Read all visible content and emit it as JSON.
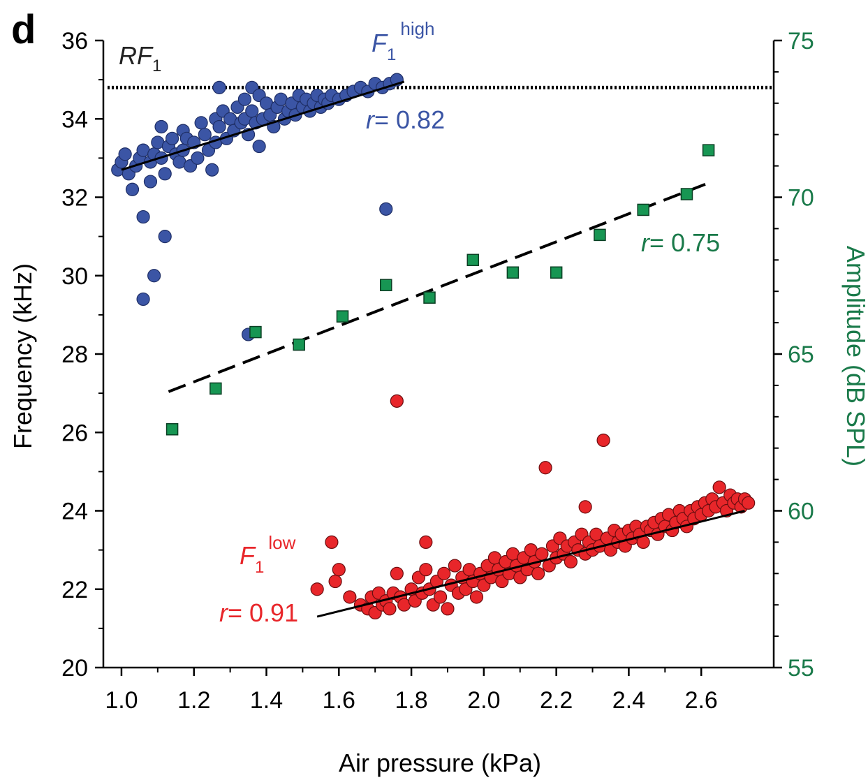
{
  "chart_data": {
    "type": "scatter",
    "panel_label": "d",
    "xlabel": "Air pressure (kPa)",
    "ylabel_left": "Frequency (kHz)",
    "ylabel_right": "Amplitude (dB SPL)",
    "xlim": [
      0.95,
      2.8
    ],
    "ylim_left": [
      20,
      36
    ],
    "ylim_right": [
      55,
      75
    ],
    "x_ticks": [
      "1.0",
      "1.2",
      "1.4",
      "1.6",
      "1.8",
      "2.0",
      "2.2",
      "2.4",
      "2.6"
    ],
    "y_ticks_left": [
      "20",
      "22",
      "24",
      "26",
      "28",
      "30",
      "32",
      "34",
      "36"
    ],
    "y_ticks_right": [
      "55",
      "60",
      "65",
      "70",
      "75"
    ],
    "grid": false,
    "reference_line": {
      "label": "RF",
      "label_sub": "1",
      "y": 34.8,
      "style": "dotted"
    },
    "colors": {
      "high": "#3b55a5",
      "low": "#e8262a",
      "amplitude": "#179653",
      "right_axis": "#1a7a4a",
      "fit": "#000000"
    },
    "series": [
      {
        "name": "F",
        "name_sub": "1",
        "name_sup": "high",
        "axis": "left",
        "r_label": "r",
        "r_value": "= 0.82",
        "fit": {
          "x": [
            1.0,
            1.78
          ],
          "y": [
            32.7,
            34.95
          ]
        },
        "points": [
          [
            0.99,
            32.7
          ],
          [
            1.0,
            32.9
          ],
          [
            1.01,
            33.1
          ],
          [
            1.02,
            32.6
          ],
          [
            1.03,
            32.2
          ],
          [
            1.04,
            32.8
          ],
          [
            1.05,
            33.0
          ],
          [
            1.06,
            33.2
          ],
          [
            1.06,
            31.5
          ],
          [
            1.06,
            29.4
          ],
          [
            1.08,
            32.4
          ],
          [
            1.08,
            32.9
          ],
          [
            1.09,
            33.1
          ],
          [
            1.09,
            30.0
          ],
          [
            1.1,
            33.4
          ],
          [
            1.11,
            33.8
          ],
          [
            1.11,
            33.0
          ],
          [
            1.12,
            32.6
          ],
          [
            1.12,
            31.0
          ],
          [
            1.13,
            33.3
          ],
          [
            1.14,
            33.5
          ],
          [
            1.15,
            33.1
          ],
          [
            1.16,
            32.9
          ],
          [
            1.17,
            33.7
          ],
          [
            1.17,
            33.2
          ],
          [
            1.18,
            33.5
          ],
          [
            1.19,
            32.8
          ],
          [
            1.2,
            33.4
          ],
          [
            1.21,
            33.0
          ],
          [
            1.22,
            33.9
          ],
          [
            1.23,
            33.6
          ],
          [
            1.24,
            33.2
          ],
          [
            1.25,
            32.7
          ],
          [
            1.26,
            33.4
          ],
          [
            1.26,
            34.0
          ],
          [
            1.27,
            33.8
          ],
          [
            1.28,
            34.2
          ],
          [
            1.29,
            33.5
          ],
          [
            1.3,
            34.0
          ],
          [
            1.31,
            33.7
          ],
          [
            1.32,
            34.3
          ],
          [
            1.33,
            33.9
          ],
          [
            1.34,
            34.5
          ],
          [
            1.34,
            34.0
          ],
          [
            1.35,
            33.6
          ],
          [
            1.36,
            34.8
          ],
          [
            1.36,
            34.2
          ],
          [
            1.37,
            33.9
          ],
          [
            1.38,
            34.6
          ],
          [
            1.38,
            33.3
          ],
          [
            1.39,
            34.0
          ],
          [
            1.4,
            34.4
          ],
          [
            1.41,
            34.1
          ],
          [
            1.42,
            33.8
          ],
          [
            1.43,
            34.3
          ],
          [
            1.44,
            34.5
          ],
          [
            1.45,
            34.0
          ],
          [
            1.46,
            34.2
          ],
          [
            1.47,
            34.4
          ],
          [
            1.48,
            34.1
          ],
          [
            1.49,
            34.6
          ],
          [
            1.5,
            34.3
          ],
          [
            1.51,
            34.5
          ],
          [
            1.52,
            34.2
          ],
          [
            1.53,
            34.4
          ],
          [
            1.54,
            34.6
          ],
          [
            1.55,
            34.3
          ],
          [
            1.56,
            34.5
          ],
          [
            1.57,
            34.4
          ],
          [
            1.58,
            34.6
          ],
          [
            1.6,
            34.5
          ],
          [
            1.62,
            34.6
          ],
          [
            1.64,
            34.7
          ],
          [
            1.66,
            34.8
          ],
          [
            1.68,
            34.7
          ],
          [
            1.7,
            34.9
          ],
          [
            1.72,
            34.8
          ],
          [
            1.74,
            34.9
          ],
          [
            1.76,
            35.0
          ],
          [
            1.27,
            34.8
          ],
          [
            1.73,
            31.7
          ],
          [
            1.35,
            28.5
          ]
        ]
      },
      {
        "name": "F",
        "name_sub": "1",
        "name_sup": "low",
        "axis": "left",
        "r_label": "r",
        "r_value": "= 0.91",
        "fit": {
          "x": [
            1.54,
            2.72
          ],
          "y": [
            21.3,
            24.0
          ]
        },
        "points": [
          [
            1.54,
            22.0
          ],
          [
            1.58,
            23.2
          ],
          [
            1.59,
            22.2
          ],
          [
            1.6,
            22.5
          ],
          [
            1.63,
            21.8
          ],
          [
            1.66,
            21.6
          ],
          [
            1.68,
            21.5
          ],
          [
            1.69,
            21.8
          ],
          [
            1.7,
            21.4
          ],
          [
            1.71,
            21.9
          ],
          [
            1.72,
            21.6
          ],
          [
            1.73,
            21.7
          ],
          [
            1.74,
            21.5
          ],
          [
            1.75,
            21.9
          ],
          [
            1.76,
            22.4
          ],
          [
            1.76,
            26.8
          ],
          [
            1.77,
            21.8
          ],
          [
            1.78,
            21.6
          ],
          [
            1.8,
            22.0
          ],
          [
            1.81,
            21.7
          ],
          [
            1.82,
            22.3
          ],
          [
            1.83,
            21.9
          ],
          [
            1.84,
            22.5
          ],
          [
            1.84,
            23.2
          ],
          [
            1.85,
            22.0
          ],
          [
            1.86,
            21.6
          ],
          [
            1.87,
            22.2
          ],
          [
            1.88,
            21.8
          ],
          [
            1.89,
            22.4
          ],
          [
            1.9,
            21.5
          ],
          [
            1.91,
            22.1
          ],
          [
            1.92,
            22.6
          ],
          [
            1.93,
            21.9
          ],
          [
            1.94,
            22.3
          ],
          [
            1.95,
            22.0
          ],
          [
            1.96,
            22.5
          ],
          [
            1.97,
            22.2
          ],
          [
            1.98,
            21.8
          ],
          [
            1.99,
            22.4
          ],
          [
            2.0,
            22.1
          ],
          [
            2.01,
            22.6
          ],
          [
            2.02,
            22.3
          ],
          [
            2.03,
            22.8
          ],
          [
            2.04,
            22.5
          ],
          [
            2.05,
            22.2
          ],
          [
            2.06,
            22.7
          ],
          [
            2.07,
            22.4
          ],
          [
            2.08,
            22.9
          ],
          [
            2.09,
            22.6
          ],
          [
            2.1,
            22.3
          ],
          [
            2.11,
            22.8
          ],
          [
            2.12,
            22.5
          ],
          [
            2.13,
            23.0
          ],
          [
            2.14,
            22.7
          ],
          [
            2.15,
            22.4
          ],
          [
            2.16,
            22.9
          ],
          [
            2.17,
            25.1
          ],
          [
            2.18,
            22.6
          ],
          [
            2.19,
            23.1
          ],
          [
            2.2,
            22.8
          ],
          [
            2.21,
            23.3
          ],
          [
            2.22,
            22.9
          ],
          [
            2.23,
            23.1
          ],
          [
            2.24,
            22.7
          ],
          [
            2.25,
            23.2
          ],
          [
            2.26,
            23.0
          ],
          [
            2.27,
            23.4
          ],
          [
            2.28,
            22.9
          ],
          [
            2.28,
            24.1
          ],
          [
            2.29,
            23.2
          ],
          [
            2.3,
            23.0
          ],
          [
            2.31,
            23.4
          ],
          [
            2.32,
            23.1
          ],
          [
            2.33,
            25.8
          ],
          [
            2.34,
            23.3
          ],
          [
            2.35,
            23.0
          ],
          [
            2.36,
            23.5
          ],
          [
            2.37,
            23.2
          ],
          [
            2.38,
            23.4
          ],
          [
            2.39,
            23.1
          ],
          [
            2.4,
            23.5
          ],
          [
            2.41,
            23.3
          ],
          [
            2.42,
            23.6
          ],
          [
            2.43,
            23.4
          ],
          [
            2.44,
            23.2
          ],
          [
            2.45,
            23.6
          ],
          [
            2.46,
            23.5
          ],
          [
            2.47,
            23.7
          ],
          [
            2.48,
            23.4
          ],
          [
            2.49,
            23.8
          ],
          [
            2.5,
            23.6
          ],
          [
            2.51,
            23.9
          ],
          [
            2.52,
            23.5
          ],
          [
            2.53,
            23.7
          ],
          [
            2.54,
            24.0
          ],
          [
            2.55,
            23.8
          ],
          [
            2.56,
            23.6
          ],
          [
            2.57,
            24.0
          ],
          [
            2.58,
            23.8
          ],
          [
            2.59,
            24.1
          ],
          [
            2.6,
            23.9
          ],
          [
            2.61,
            24.2
          ],
          [
            2.62,
            24.0
          ],
          [
            2.63,
            24.3
          ],
          [
            2.64,
            24.1
          ],
          [
            2.65,
            24.6
          ],
          [
            2.66,
            24.2
          ],
          [
            2.67,
            24.0
          ],
          [
            2.68,
            24.4
          ],
          [
            2.69,
            24.2
          ],
          [
            2.7,
            24.3
          ],
          [
            2.71,
            24.1
          ],
          [
            2.72,
            24.3
          ],
          [
            2.73,
            24.2
          ]
        ]
      },
      {
        "name": "Amplitude",
        "axis": "right",
        "marker": "square",
        "r_label": "r",
        "r_value": "= 0.75",
        "fit": {
          "x": [
            1.13,
            2.63
          ],
          "y": [
            63.8,
            70.5
          ]
        },
        "points": [
          [
            1.14,
            62.6
          ],
          [
            1.26,
            63.9
          ],
          [
            1.37,
            65.7
          ],
          [
            1.49,
            65.3
          ],
          [
            1.61,
            66.2
          ],
          [
            1.73,
            67.2
          ],
          [
            1.85,
            66.8
          ],
          [
            1.97,
            68.0
          ],
          [
            2.08,
            67.6
          ],
          [
            2.2,
            67.6
          ],
          [
            2.32,
            68.8
          ],
          [
            2.44,
            69.6
          ],
          [
            2.56,
            70.1
          ],
          [
            2.62,
            71.5
          ]
        ]
      }
    ]
  }
}
